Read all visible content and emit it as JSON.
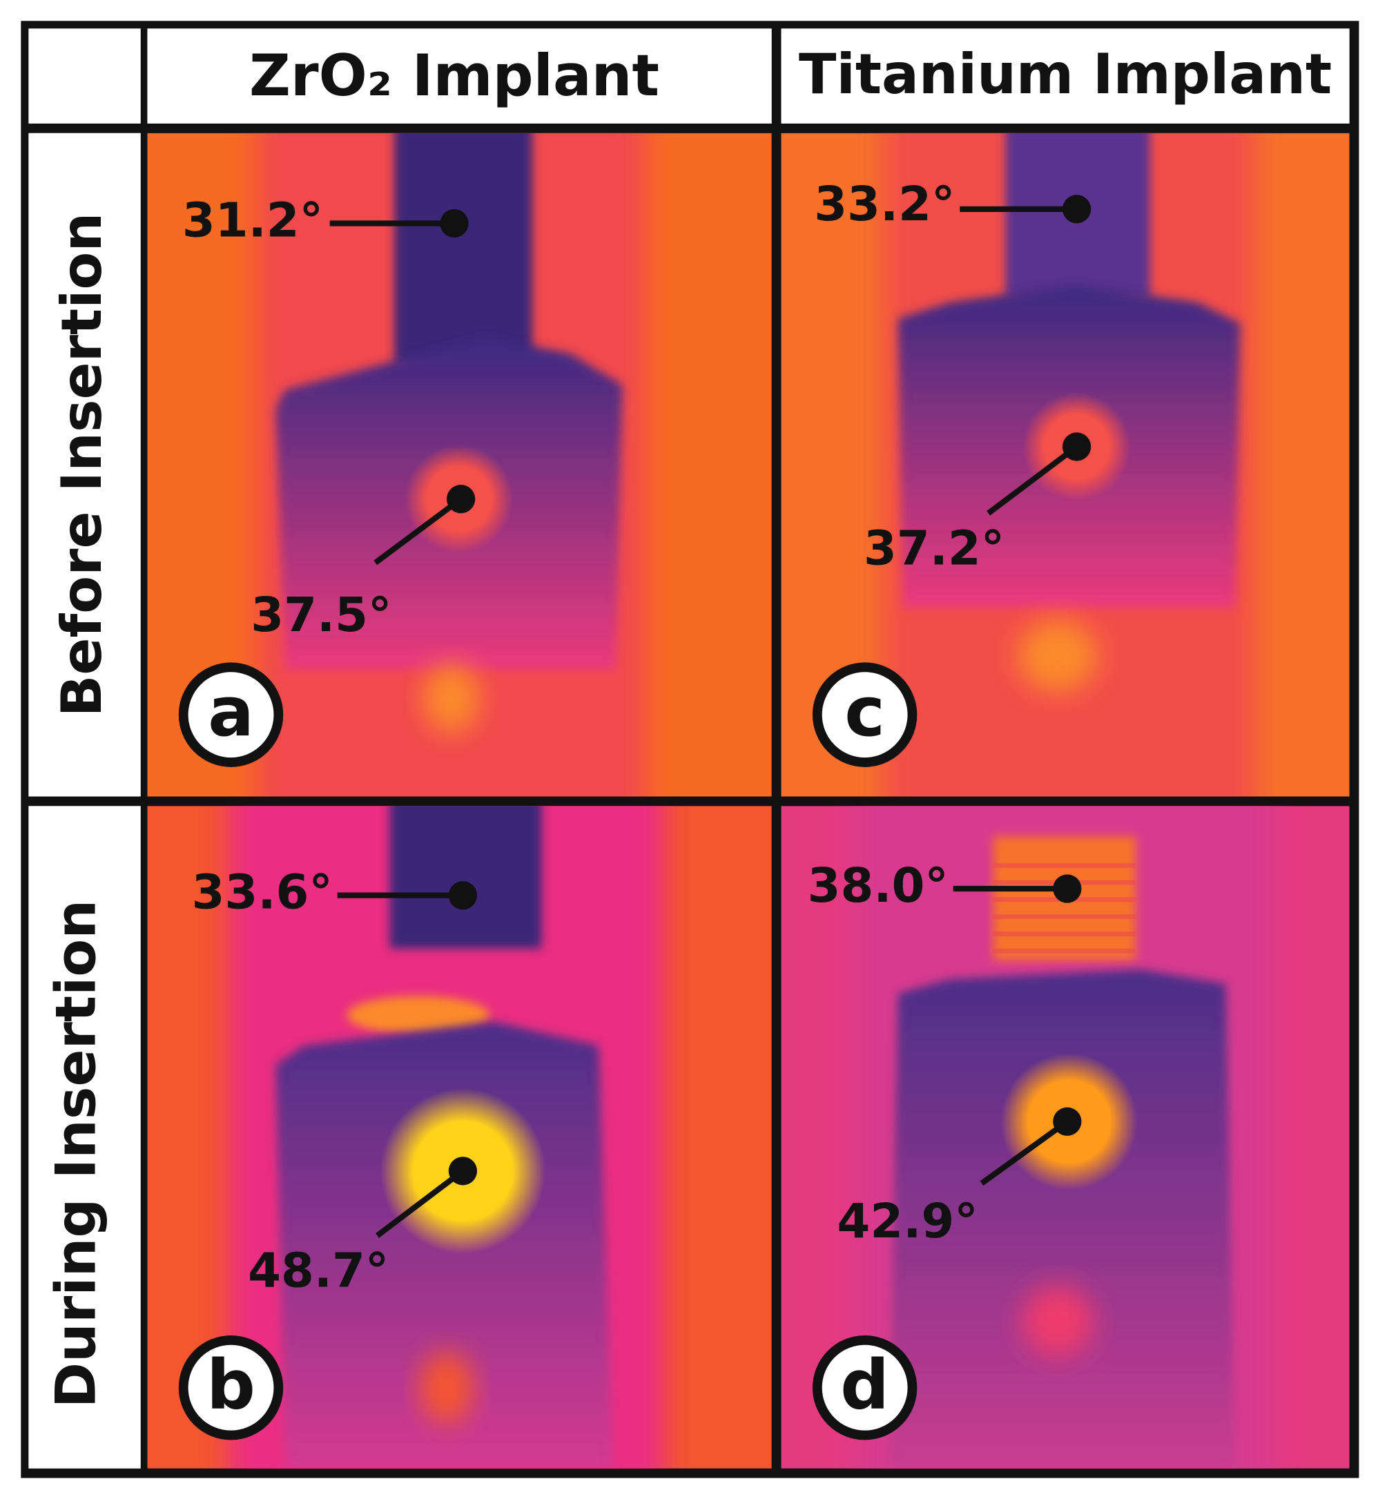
{
  "header": {
    "columns": [
      "ZrO₂ Implant",
      "Titanium Implant"
    ]
  },
  "rows": [
    "Before Insertion",
    "During Insertion"
  ],
  "panels": [
    {
      "letter": "a",
      "top_label": "31.2°",
      "bottom_label": "37.5°"
    },
    {
      "letter": "c",
      "top_label": "33.2°",
      "bottom_label": "37.2°"
    },
    {
      "letter": "b",
      "top_label": "33.6°",
      "bottom_label": "48.7°"
    },
    {
      "letter": "d",
      "top_label": "38.0°",
      "bottom_label": "42.9°"
    }
  ]
}
